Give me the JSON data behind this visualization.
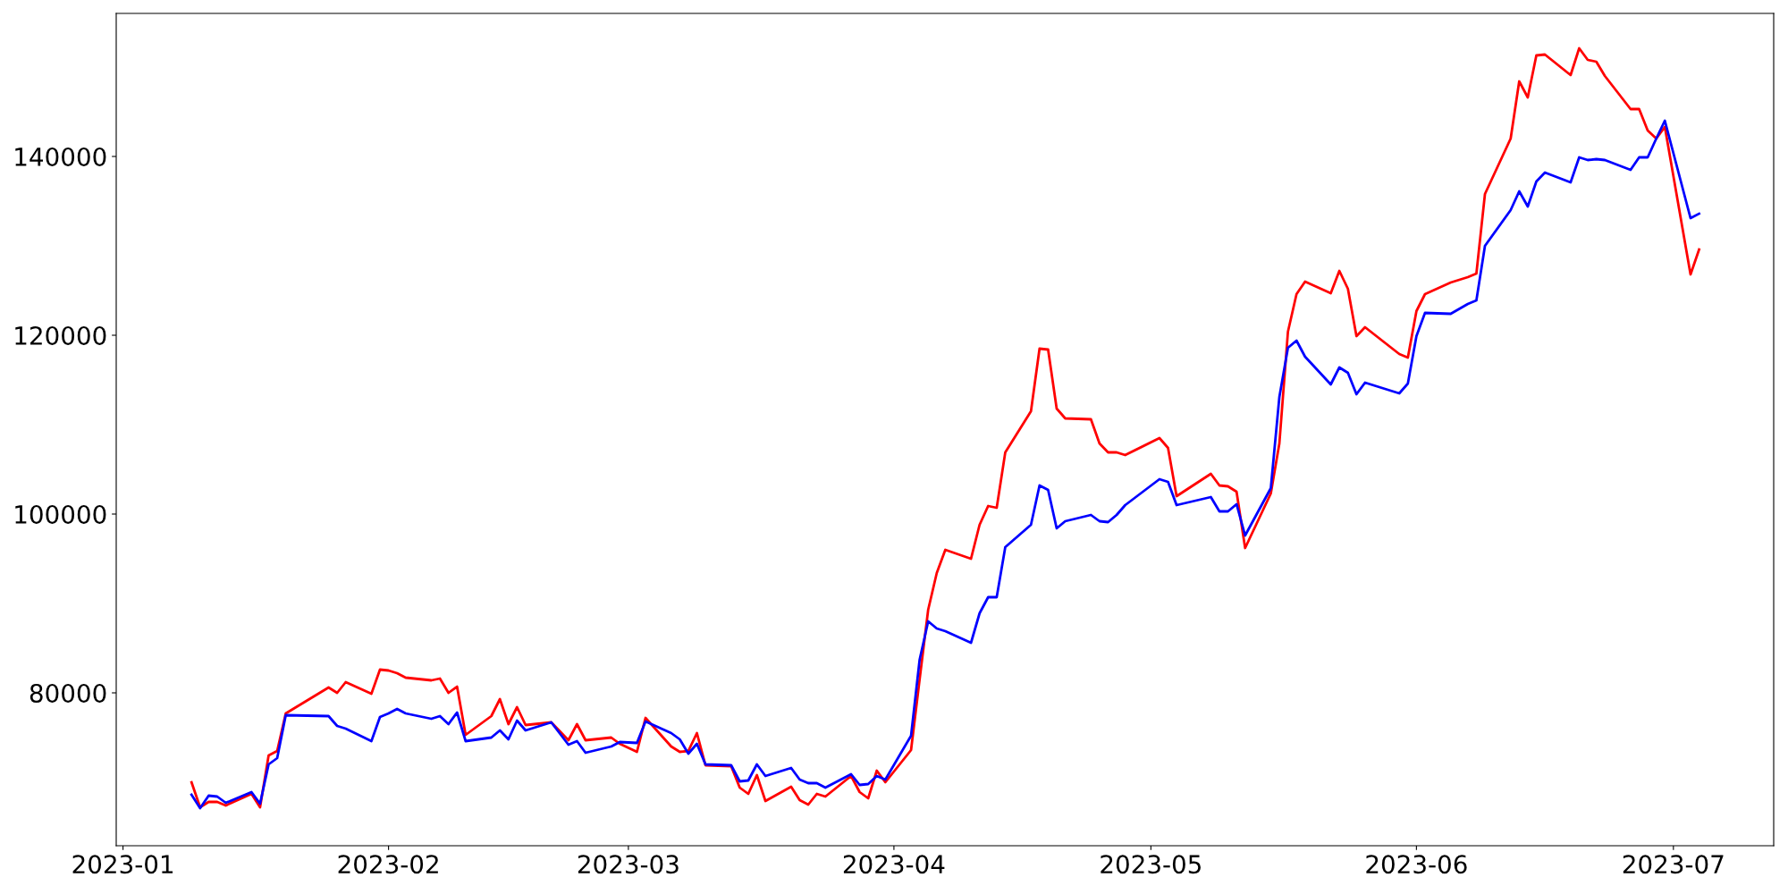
{
  "chart_data": {
    "type": "line",
    "x": [
      "2023-01-09",
      "2023-01-10",
      "2023-01-11",
      "2023-01-12",
      "2023-01-13",
      "2023-01-16",
      "2023-01-17",
      "2023-01-18",
      "2023-01-19",
      "2023-01-20",
      "2023-01-25",
      "2023-01-26",
      "2023-01-27",
      "2023-01-30",
      "2023-01-31",
      "2023-02-01",
      "2023-02-02",
      "2023-02-03",
      "2023-02-06",
      "2023-02-07",
      "2023-02-08",
      "2023-02-09",
      "2023-02-10",
      "2023-02-13",
      "2023-02-14",
      "2023-02-15",
      "2023-02-16",
      "2023-02-17",
      "2023-02-20",
      "2023-02-22",
      "2023-02-23",
      "2023-02-24",
      "2023-02-27",
      "2023-02-28",
      "2023-03-02",
      "2023-03-03",
      "2023-03-06",
      "2023-03-07",
      "2023-03-08",
      "2023-03-09",
      "2023-03-10",
      "2023-03-13",
      "2023-03-14",
      "2023-03-15",
      "2023-03-16",
      "2023-03-17",
      "2023-03-20",
      "2023-03-21",
      "2023-03-22",
      "2023-03-23",
      "2023-03-24",
      "2023-03-27",
      "2023-03-28",
      "2023-03-29",
      "2023-03-30",
      "2023-03-31",
      "2023-04-03",
      "2023-04-04",
      "2023-04-05",
      "2023-04-06",
      "2023-04-07",
      "2023-04-10",
      "2023-04-11",
      "2023-04-12",
      "2023-04-13",
      "2023-04-14",
      "2023-04-17",
      "2023-04-18",
      "2023-04-19",
      "2023-04-20",
      "2023-04-21",
      "2023-04-24",
      "2023-04-25",
      "2023-04-26",
      "2023-04-27",
      "2023-04-28",
      "2023-05-02",
      "2023-05-03",
      "2023-05-04",
      "2023-05-08",
      "2023-05-09",
      "2023-05-10",
      "2023-05-11",
      "2023-05-12",
      "2023-05-15",
      "2023-05-16",
      "2023-05-17",
      "2023-05-18",
      "2023-05-19",
      "2023-05-22",
      "2023-05-23",
      "2023-05-24",
      "2023-05-25",
      "2023-05-26",
      "2023-05-30",
      "2023-05-31",
      "2023-06-01",
      "2023-06-02",
      "2023-06-05",
      "2023-06-07",
      "2023-06-08",
      "2023-06-09",
      "2023-06-12",
      "2023-06-13",
      "2023-06-14",
      "2023-06-15",
      "2023-06-16",
      "2023-06-19",
      "2023-06-20",
      "2023-06-21",
      "2023-06-22",
      "2023-06-23",
      "2023-06-26",
      "2023-06-27",
      "2023-06-28",
      "2023-06-29",
      "2023-06-30",
      "2023-07-03",
      "2023-07-04"
    ],
    "series": [
      {
        "color": "#ff0000",
        "values": [
          70000,
          67200,
          67800,
          67800,
          67400,
          68700,
          67200,
          73000,
          73500,
          77700,
          80600,
          80000,
          81200,
          79900,
          82600,
          82500,
          82200,
          81700,
          81400,
          81600,
          80000,
          80700,
          75300,
          77400,
          79300,
          76500,
          78400,
          76400,
          76700,
          74700,
          76500,
          74700,
          75000,
          74300,
          73400,
          77200,
          74000,
          73400,
          73500,
          75500,
          71900,
          71800,
          69400,
          68700,
          70800,
          67900,
          69500,
          68000,
          67500,
          68700,
          68400,
          70700,
          68900,
          68200,
          71300,
          70000,
          73600,
          81500,
          89300,
          93400,
          96000,
          95000,
          98800,
          100900,
          100700,
          106900,
          111500,
          118500,
          118400,
          111800,
          110700,
          110600,
          107900,
          106900,
          106900,
          106600,
          108500,
          107400,
          102000,
          104500,
          103200,
          103100,
          102500,
          96200,
          102300,
          107900,
          120400,
          124600,
          126000,
          124700,
          127200,
          125200,
          119900,
          120900,
          117900,
          117500,
          122700,
          124600,
          125900,
          126500,
          126900,
          135800,
          142000,
          148400,
          146600,
          151300,
          151400,
          149100,
          152100,
          150800,
          150600,
          149000,
          145300,
          145300,
          142900,
          142000,
          143300,
          126800,
          129600
        ]
      },
      {
        "color": "#0000ff",
        "values": [
          68600,
          67100,
          68500,
          68400,
          67700,
          68900,
          67600,
          72000,
          72700,
          77500,
          77400,
          76300,
          76000,
          74600,
          77300,
          77700,
          78200,
          77700,
          77100,
          77400,
          76500,
          77800,
          74600,
          75000,
          75800,
          74800,
          76900,
          75800,
          76700,
          74200,
          74600,
          73300,
          74000,
          74500,
          74400,
          76800,
          75500,
          74800,
          73200,
          74300,
          72000,
          71900,
          70100,
          70200,
          72000,
          70700,
          71600,
          70300,
          69900,
          69900,
          69400,
          70900,
          69700,
          69800,
          70700,
          70300,
          75200,
          83700,
          88000,
          87200,
          86900,
          85600,
          88900,
          90700,
          90700,
          96300,
          98800,
          103200,
          102700,
          98400,
          99200,
          99900,
          99200,
          99100,
          99900,
          101000,
          103900,
          103600,
          101000,
          101900,
          100300,
          100300,
          101100,
          97600,
          102900,
          113100,
          118600,
          119400,
          117600,
          114500,
          116400,
          115800,
          113400,
          114700,
          113500,
          114600,
          119900,
          122500,
          122400,
          123500,
          123900,
          130000,
          134000,
          136100,
          134400,
          137200,
          138200,
          137100,
          139900,
          139600,
          139700,
          139600,
          138500,
          139900,
          139900,
          142000,
          144000,
          133100,
          133600
        ]
      }
    ],
    "xlim": [
      "2022-12-31T05:00",
      "2023-07-12T17:00"
    ],
    "ylim": [
      62900,
      156000
    ],
    "xticks": [
      {
        "value": "2023-01-01",
        "label": "2023-01"
      },
      {
        "value": "2023-02-01",
        "label": "2023-02"
      },
      {
        "value": "2023-03-01",
        "label": "2023-03"
      },
      {
        "value": "2023-04-01",
        "label": "2023-04"
      },
      {
        "value": "2023-05-01",
        "label": "2023-05"
      },
      {
        "value": "2023-06-01",
        "label": "2023-06"
      },
      {
        "value": "2023-07-01",
        "label": "2023-07"
      }
    ],
    "yticks": [
      80000,
      100000,
      120000,
      140000
    ],
    "grid": false,
    "marker": "none",
    "line_style": "solid"
  }
}
